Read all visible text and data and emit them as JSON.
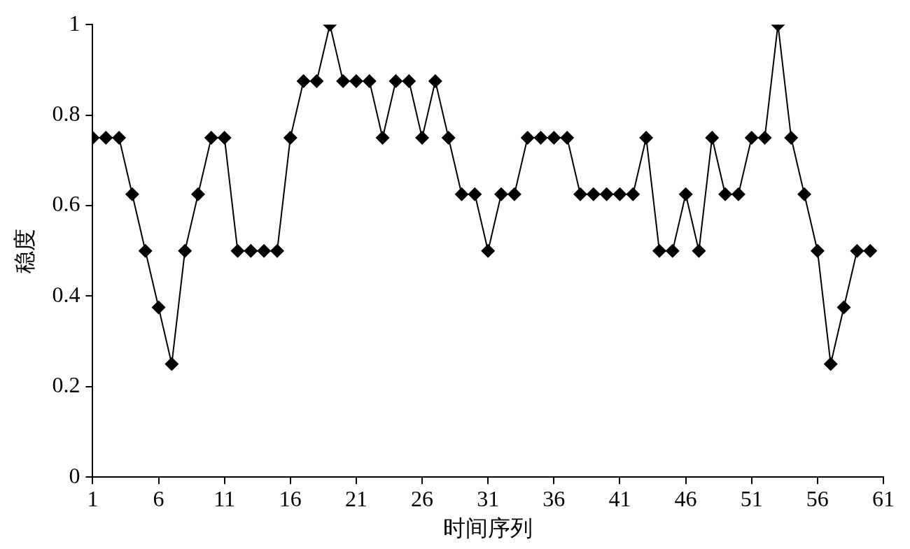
{
  "chart_data": {
    "type": "line",
    "xlabel": "时间序列",
    "ylabel": "稳度",
    "x": [
      1,
      2,
      3,
      4,
      5,
      6,
      7,
      8,
      9,
      10,
      11,
      12,
      13,
      14,
      15,
      16,
      17,
      18,
      19,
      20,
      21,
      22,
      23,
      24,
      25,
      26,
      27,
      28,
      29,
      30,
      31,
      32,
      33,
      34,
      35,
      36,
      37,
      38,
      39,
      40,
      41,
      42,
      43,
      44,
      45,
      46,
      47,
      48,
      49,
      50,
      51,
      52,
      53,
      54,
      55,
      56,
      57,
      58,
      59,
      60
    ],
    "series": [
      {
        "color": "#000000",
        "values": [
          0.75,
          0.75,
          0.75,
          0.625,
          0.5,
          0.375,
          0.25,
          0.5,
          0.625,
          0.75,
          0.75,
          0.5,
          0.5,
          0.5,
          0.5,
          0.75,
          0.875,
          0.875,
          1,
          0.875,
          0.875,
          0.875,
          0.75,
          0.875,
          0.875,
          0.75,
          0.875,
          0.75,
          0.625,
          0.625,
          0.5,
          0.625,
          0.625,
          0.75,
          0.75,
          0.75,
          0.75,
          0.625,
          0.625,
          0.625,
          0.625,
          0.625,
          0.75,
          0.5,
          0.5,
          0.625,
          0.5,
          0.75,
          0.625,
          0.625,
          0.75,
          0.75,
          1,
          0.75,
          0.625,
          0.5,
          0.25,
          0.375,
          0.5,
          0.5
        ]
      }
    ],
    "xlim": [
      1,
      61
    ],
    "xticks": [
      1,
      6,
      11,
      16,
      21,
      26,
      31,
      36,
      41,
      46,
      51,
      56,
      61
    ],
    "ylim": [
      0,
      1
    ],
    "yticks": [
      0,
      0.2,
      0.4,
      0.6,
      0.8,
      1
    ],
    "grid": false,
    "legend": false,
    "marker": "diamond",
    "line_style": "solid"
  }
}
